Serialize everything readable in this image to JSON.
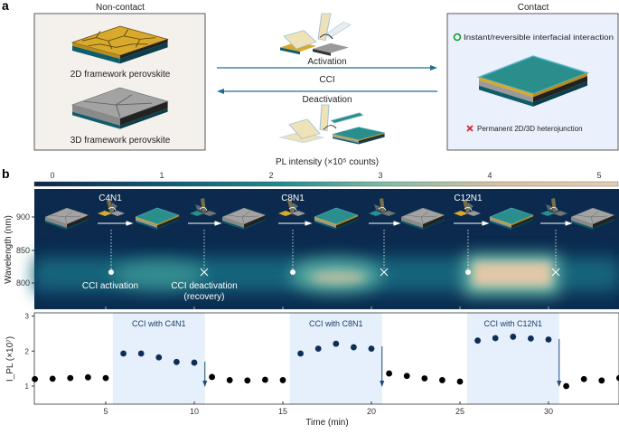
{
  "panel_a": {
    "label": "a",
    "non_contact": {
      "title": "Non-contact",
      "item_2d": "2D framework perovskite",
      "item_3d": "3D framework perovskite",
      "bg_color": "#f4f1ec"
    },
    "contact": {
      "title": "Contact",
      "positive": "Instant/reversible interfacial interaction",
      "negative": "Permanent 2D/3D heterojunction",
      "positive_icon": "green-circle",
      "negative_icon": "red-cross",
      "bg_color": "#eaf1fc"
    },
    "arrows": {
      "activation": "Activation",
      "center": "CCI",
      "deactivation": "Deactivation"
    }
  },
  "panel_b": {
    "label": "b",
    "colorbar": {
      "title": "PL intensity (×10⁵ counts)",
      "ticks": [
        "0",
        "1",
        "2",
        "3",
        "4",
        "5"
      ],
      "colors": [
        "#0b2748",
        "#0f5878",
        "#1d8a8c",
        "#7fbca6",
        "#d8c2a2",
        "#e8cdb2"
      ]
    },
    "heatmap": {
      "ylabel": "Wavelength (nm)",
      "yticks": [
        "900",
        "850",
        "800"
      ],
      "groups": [
        "C4N1",
        "C8N1",
        "C12N1"
      ],
      "activation_label": "CCI activation",
      "deactivation_label": "CCI deactivation",
      "deactivation_sublabel": "(recovery)"
    }
  },
  "chart_data": {
    "type": "scatter",
    "xlabel": "Time (min)",
    "ylabel": "I_PL (×10⁷)",
    "ylabel_main": "I",
    "ylabel_sub": "PL",
    "ylabel_unit": "(×10⁷)",
    "xlim": [
      1,
      34
    ],
    "ylim": [
      0.5,
      3.1
    ],
    "xticks": [
      "5",
      "10",
      "15",
      "20",
      "25",
      "30"
    ],
    "yticks": [
      "3",
      "2",
      "1"
    ],
    "grid": false,
    "shaded_regions": [
      {
        "label": "CCI with C4N1",
        "x": [
          5.4,
          10.6
        ]
      },
      {
        "label": "CCI with C8N1",
        "x": [
          15.4,
          20.6
        ]
      },
      {
        "label": "CCI with C12N1",
        "x": [
          25.4,
          30.6
        ]
      }
    ],
    "colors": {
      "off": "#000000",
      "on": "#0d2f55",
      "shade": "#e6effc",
      "arrow": "#1d4a78"
    },
    "x": [
      1,
      2,
      3,
      4,
      5,
      6,
      7,
      8,
      9,
      10,
      11,
      12,
      13,
      14,
      15,
      16,
      17,
      18,
      19,
      20,
      21,
      22,
      23,
      24,
      25,
      26,
      27,
      28,
      29,
      30,
      31,
      32,
      33,
      34
    ],
    "y": [
      1.2,
      1.21,
      1.23,
      1.25,
      1.23,
      1.93,
      1.93,
      1.82,
      1.69,
      1.67,
      1.26,
      1.17,
      1.16,
      1.18,
      1.17,
      1.93,
      2.07,
      2.21,
      2.11,
      2.07,
      1.36,
      1.29,
      1.22,
      1.17,
      1.13,
      2.3,
      2.37,
      2.41,
      2.36,
      2.33,
      1.0,
      1.2,
      1.16,
      1.23
    ]
  }
}
